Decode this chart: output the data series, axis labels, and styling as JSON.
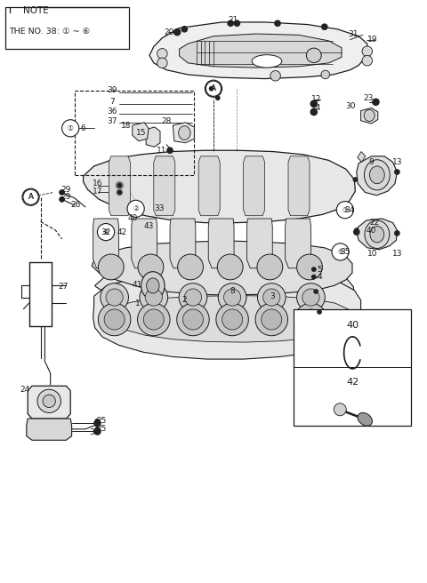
{
  "bg_color": "#ffffff",
  "line_color": "#1a1a1a",
  "fig_width": 4.8,
  "fig_height": 6.56,
  "dpi": 100,
  "note_text1": "NOTE",
  "note_text2": "THE NO. 38: ① ~ ⑥",
  "legend_items": [
    "40",
    "42"
  ],
  "label_font_size": 6.5,
  "small_font_size": 5.5
}
